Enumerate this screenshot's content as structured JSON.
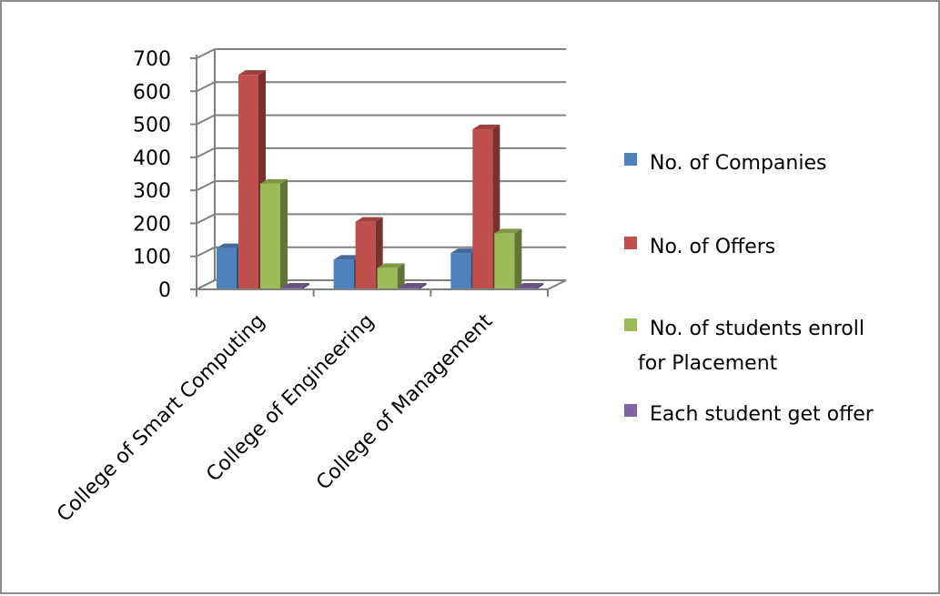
{
  "chart_data": {
    "type": "bar",
    "style": "3d-clustered-column",
    "categories": [
      "College of Smart Computing",
      "College of Engineering",
      "College of Management"
    ],
    "series": [
      {
        "name": "No. of Companies",
        "values": [
          125,
          90,
          110
        ],
        "color": "#4F81BD"
      },
      {
        "name": "No. of Offers",
        "values": [
          650,
          205,
          485
        ],
        "color": "#C0504D"
      },
      {
        "name": "No. of students enroll for Placement",
        "name_lines": [
          "No. of students enroll",
          "for Placement"
        ],
        "values": [
          320,
          65,
          170
        ],
        "color": "#9BBB59"
      },
      {
        "name": "Each student get offer",
        "values": [
          1,
          1,
          1
        ],
        "color": "#8064A2"
      }
    ],
    "y_ticks": [
      "0",
      "100",
      "200",
      "300",
      "400",
      "500",
      "600",
      "700"
    ],
    "ylim": [
      0,
      700
    ],
    "grid": true,
    "legend_position": "right",
    "title": "",
    "xlabel": "",
    "ylabel": ""
  }
}
